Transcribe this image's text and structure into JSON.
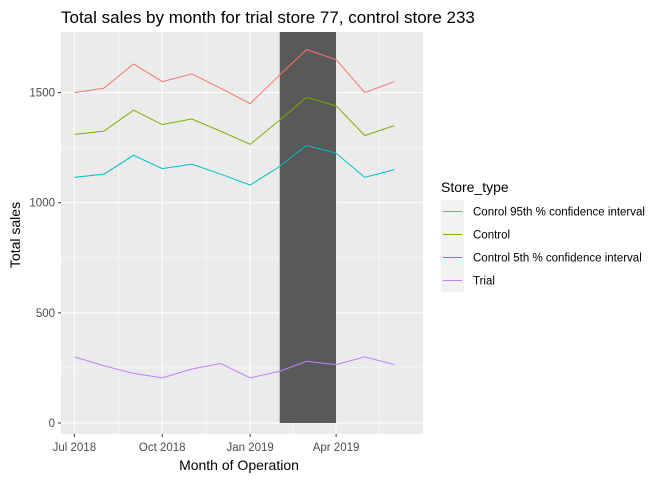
{
  "chart_data": {
    "type": "line",
    "title": "Total sales by month for trial store 77, control store 233",
    "xlabel": "Month of Operation",
    "ylabel": "Total sales",
    "x": [
      "2018-07",
      "2018-08",
      "2018-09",
      "2018-10",
      "2018-11",
      "2018-12",
      "2019-01",
      "2019-02",
      "2019-03",
      "2019-04",
      "2019-05",
      "2019-06"
    ],
    "x_ticks": [
      {
        "x": "2018-07",
        "label": "Jul 2018"
      },
      {
        "x": "2018-10",
        "label": "Oct 2018"
      },
      {
        "x": "2019-01",
        "label": "Jan 2019"
      },
      {
        "x": "2019-04",
        "label": "Apr 2019"
      }
    ],
    "xlim": [
      "2018-06-17",
      "2019-07-01"
    ],
    "ylim": [
      -50,
      1775
    ],
    "y_ticks": [
      0,
      500,
      1000,
      1500
    ],
    "shaded_region": {
      "x_start": "2019-02",
      "x_end": "2019-04",
      "y_start": 0,
      "y_end": 1775,
      "color": "#595959"
    },
    "legend_title": "Store_type",
    "legend_position": "right",
    "grid": true,
    "series": [
      {
        "name": "Conrol 95th % confidence interval",
        "color": "#F8766D",
        "values": [
          1500,
          1520,
          1630,
          1550,
          1585,
          1520,
          1450,
          1580,
          1695,
          1650,
          1500,
          1550
        ]
      },
      {
        "name": "Control",
        "color": "#7CAE00",
        "values": [
          1310,
          1325,
          1420,
          1355,
          1380,
          1325,
          1265,
          1375,
          1478,
          1440,
          1305,
          1350
        ]
      },
      {
        "name": "Control 5th % confidence interval",
        "color": "#00BFC4",
        "values": [
          1115,
          1130,
          1215,
          1155,
          1175,
          1130,
          1080,
          1165,
          1260,
          1225,
          1115,
          1150
        ]
      },
      {
        "name": "Trial",
        "color": "#C77CFF",
        "values": [
          300,
          260,
          225,
          205,
          245,
          270,
          205,
          235,
          280,
          265,
          300,
          265
        ]
      }
    ]
  }
}
